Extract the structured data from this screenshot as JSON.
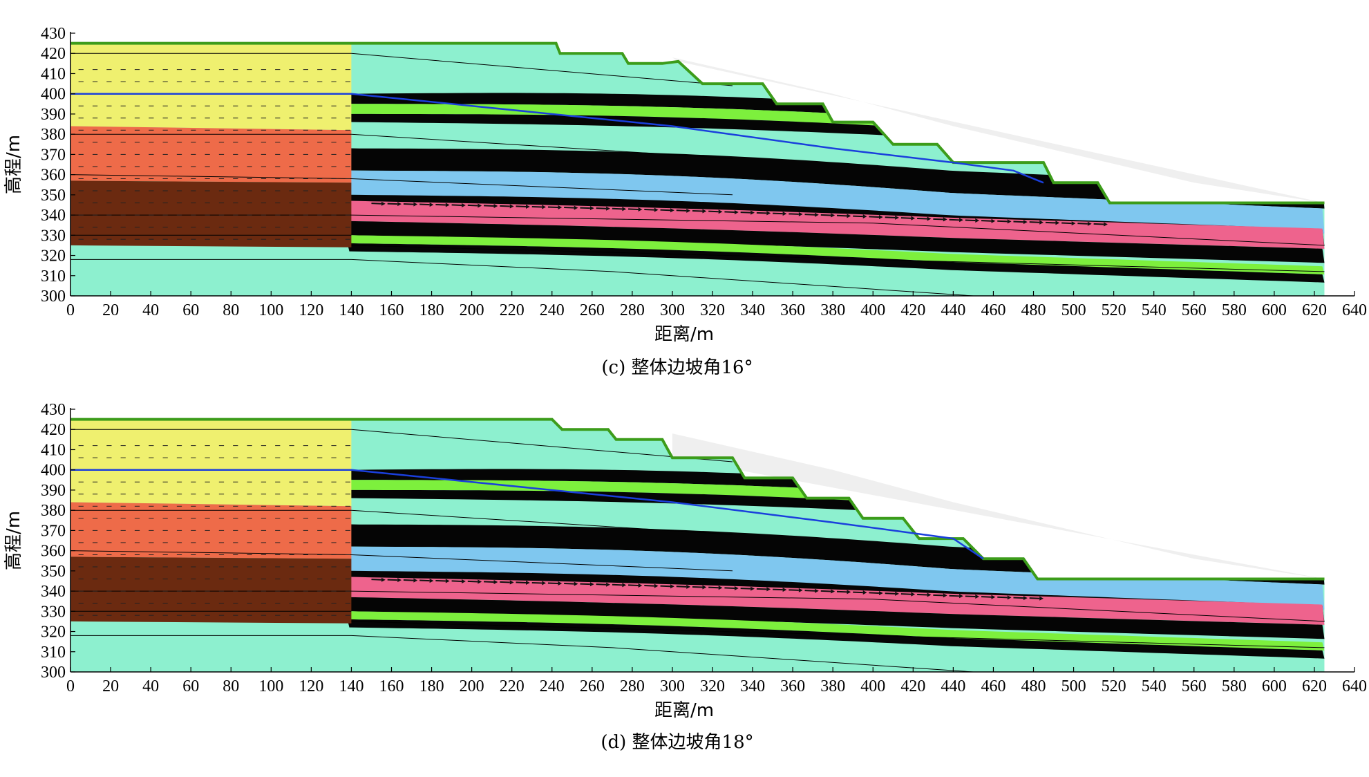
{
  "panels": [
    {
      "id": "c",
      "caption": "(c) 整体边坡角16°",
      "xlabel": "距离/m",
      "ylabel": "高程/m",
      "xlim": [
        0,
        640
      ],
      "ylim": [
        300,
        430
      ],
      "xticks": [
        "0",
        "20",
        "40",
        "60",
        "80",
        "100",
        "120",
        "140",
        "160",
        "180",
        "200",
        "220",
        "240",
        "260",
        "280",
        "300",
        "320",
        "340",
        "360",
        "380",
        "400",
        "420",
        "440",
        "460",
        "480",
        "500",
        "520",
        "540",
        "560",
        "580",
        "600",
        "620",
        "640"
      ],
      "yticks": [
        "300",
        "310",
        "320",
        "330",
        "340",
        "350",
        "360",
        "370",
        "380",
        "390",
        "400",
        "410",
        "420",
        "430"
      ],
      "ground_surface": [
        [
          0,
          425
        ],
        [
          242,
          425
        ],
        [
          244,
          420
        ],
        [
          275,
          420
        ],
        [
          278,
          415
        ],
        [
          295,
          415
        ],
        [
          303,
          416
        ],
        [
          315,
          405
        ],
        [
          345,
          405
        ],
        [
          352,
          395
        ],
        [
          375,
          395
        ],
        [
          380,
          386
        ],
        [
          400,
          386
        ],
        [
          410,
          375
        ],
        [
          432,
          375
        ],
        [
          440,
          366
        ],
        [
          485,
          366
        ],
        [
          490,
          356
        ],
        [
          512,
          356
        ],
        [
          518,
          346
        ],
        [
          625,
          346
        ]
      ],
      "water_table": [
        [
          0,
          400
        ],
        [
          140,
          400
        ],
        [
          200,
          394
        ],
        [
          300,
          384
        ],
        [
          380,
          373
        ],
        [
          440,
          366
        ],
        [
          470,
          362
        ],
        [
          485,
          356
        ]
      ],
      "daylight_x": 518
    },
    {
      "id": "d",
      "caption": "(d) 整体边坡角18°",
      "xlabel": "距离/m",
      "ylabel": "高程/m",
      "xlim": [
        0,
        640
      ],
      "ylim": [
        300,
        430
      ],
      "xticks": [
        "0",
        "20",
        "40",
        "60",
        "80",
        "100",
        "120",
        "140",
        "160",
        "180",
        "200",
        "220",
        "240",
        "260",
        "280",
        "300",
        "320",
        "340",
        "360",
        "380",
        "400",
        "420",
        "440",
        "460",
        "480",
        "500",
        "520",
        "540",
        "560",
        "580",
        "600",
        "620",
        "640"
      ],
      "yticks": [
        "300",
        "310",
        "320",
        "330",
        "340",
        "350",
        "360",
        "370",
        "380",
        "390",
        "400",
        "410",
        "420",
        "430"
      ],
      "ground_surface": [
        [
          0,
          425
        ],
        [
          240,
          425
        ],
        [
          245,
          420
        ],
        [
          268,
          420
        ],
        [
          272,
          415
        ],
        [
          295,
          415
        ],
        [
          300,
          406
        ],
        [
          330,
          406
        ],
        [
          336,
          396
        ],
        [
          360,
          396
        ],
        [
          367,
          386
        ],
        [
          388,
          386
        ],
        [
          395,
          376
        ],
        [
          415,
          376
        ],
        [
          423,
          366
        ],
        [
          445,
          366
        ],
        [
          455,
          356
        ],
        [
          475,
          356
        ],
        [
          482,
          346
        ],
        [
          625,
          346
        ]
      ],
      "water_table": [
        [
          0,
          400
        ],
        [
          140,
          400
        ],
        [
          200,
          394
        ],
        [
          300,
          384
        ],
        [
          380,
          374
        ],
        [
          440,
          366
        ],
        [
          455,
          356
        ]
      ],
      "daylight_x": 482
    }
  ],
  "colors": {
    "yellow": "#eff06f",
    "orange": "#ee6b49",
    "brown": "#6b2a10",
    "cyan": "#8df0cf",
    "black": "#050505",
    "green": "#7df03d",
    "blue": "#7fc7ef",
    "pink": "#ee638d",
    "surface": "#3c9c1a",
    "water": "#1a3fdc",
    "ghost": "#efefef"
  }
}
